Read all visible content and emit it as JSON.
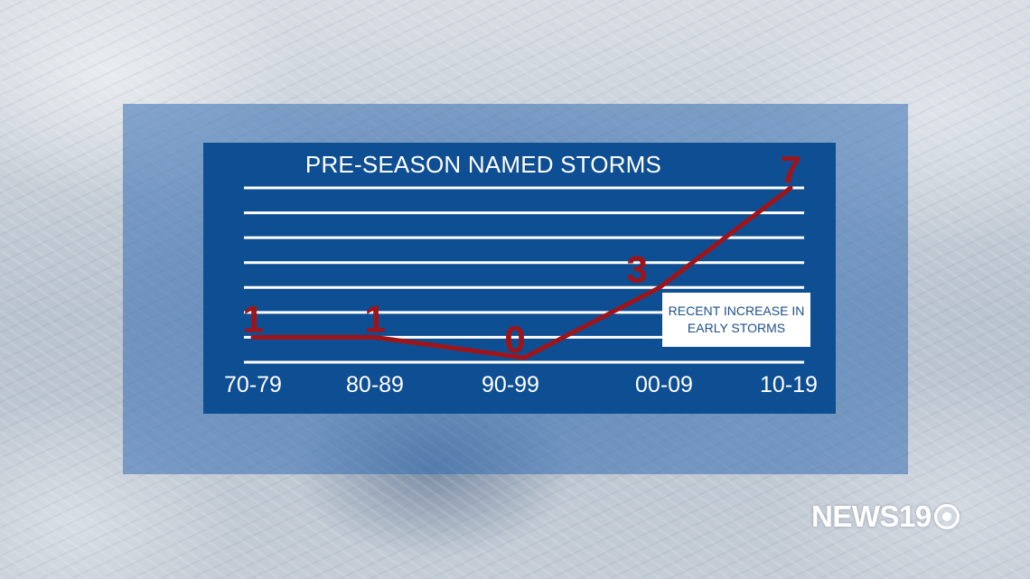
{
  "chart_data": {
    "type": "line",
    "title": "PRE-SEASON NAMED STORMS",
    "categories": [
      "70-79",
      "80-89",
      "90-99",
      "00-09",
      "10-19"
    ],
    "values": [
      1,
      1,
      0,
      3,
      7
    ],
    "data_labels": [
      "1",
      "1",
      "0",
      "3",
      "7"
    ],
    "ylim": [
      0,
      7
    ],
    "grid": true,
    "line_color": "#a01418",
    "annotation": "RECENT INCREASE IN EARLY STORMS"
  },
  "branding": {
    "logo_text": "NEWS19"
  },
  "colors": {
    "panel": "#0e4e93",
    "overlay": "#346eb2",
    "gridline": "#ffffff",
    "series_line": "#a01418"
  }
}
